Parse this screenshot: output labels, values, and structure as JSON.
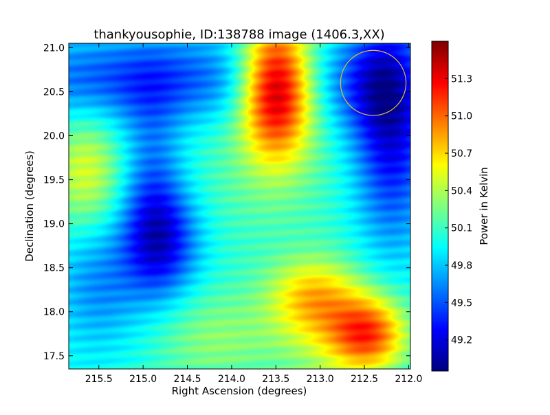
{
  "chart_data": {
    "type": "heatmap",
    "title": "thankyousophie, ID:138788 image (1406.3,XX)",
    "xlabel": "Right Ascension (degrees)",
    "ylabel": "Declination (degrees)",
    "xlim": [
      215.84,
      211.98
    ],
    "ylim": [
      17.35,
      21.05
    ],
    "xticks": [
      {
        "value": 215.5,
        "label": "215.5"
      },
      {
        "value": 215.0,
        "label": "215.0"
      },
      {
        "value": 214.5,
        "label": "214.5"
      },
      {
        "value": 214.0,
        "label": "214.0"
      },
      {
        "value": 213.5,
        "label": "213.5"
      },
      {
        "value": 213.0,
        "label": "213.0"
      },
      {
        "value": 212.5,
        "label": "212.5"
      },
      {
        "value": 212.0,
        "label": "212.0"
      }
    ],
    "yticks": [
      {
        "value": 17.5,
        "label": "17.5"
      },
      {
        "value": 18.0,
        "label": "18.0"
      },
      {
        "value": 18.5,
        "label": "18.5"
      },
      {
        "value": 19.0,
        "label": "19.0"
      },
      {
        "value": 19.5,
        "label": "19.5"
      },
      {
        "value": 20.0,
        "label": "20.0"
      },
      {
        "value": 20.5,
        "label": "20.5"
      },
      {
        "value": 21.0,
        "label": "21.0"
      }
    ],
    "colorbar": {
      "label": "Power in Kelvin",
      "range": [
        48.95,
        51.6
      ],
      "colormap": "jet",
      "ticks": [
        {
          "value": 49.2,
          "label": "49.2"
        },
        {
          "value": 49.5,
          "label": "49.5"
        },
        {
          "value": 49.8,
          "label": "49.8"
        },
        {
          "value": 50.1,
          "label": "50.1"
        },
        {
          "value": 50.4,
          "label": "50.4"
        },
        {
          "value": 50.7,
          "label": "50.7"
        },
        {
          "value": 51.0,
          "label": "51.0"
        },
        {
          "value": 51.3,
          "label": "51.3"
        }
      ]
    },
    "background_level": 50.0,
    "features": [
      {
        "ra": 213.5,
        "dec": 20.55,
        "sigma_ra": 0.28,
        "sigma_dec": 0.55,
        "amplitude": 1.55
      },
      {
        "ra": 212.45,
        "dec": 17.75,
        "sigma_ra": 0.3,
        "sigma_dec": 0.3,
        "amplitude": 0.95
      },
      {
        "ra": 213.1,
        "dec": 18.2,
        "sigma_ra": 0.35,
        "sigma_dec": 0.3,
        "amplitude": 0.55
      },
      {
        "ra": 212.9,
        "dec": 17.8,
        "sigma_ra": 0.45,
        "sigma_dec": 0.45,
        "amplitude": 0.4
      },
      {
        "ra": 215.65,
        "dec": 19.6,
        "sigma_ra": 0.3,
        "sigma_dec": 0.45,
        "amplitude": 0.5
      },
      {
        "ra": 214.8,
        "dec": 18.8,
        "sigma_ra": 0.3,
        "sigma_dec": 0.45,
        "amplitude": -0.75
      },
      {
        "ra": 214.9,
        "dec": 19.6,
        "sigma_ra": 0.25,
        "sigma_dec": 0.7,
        "amplitude": -0.4
      },
      {
        "ra": 215.0,
        "dec": 20.65,
        "sigma_ra": 1.2,
        "sigma_dec": 0.35,
        "amplitude": -0.55
      },
      {
        "ra": 212.2,
        "dec": 20.1,
        "sigma_ra": 0.3,
        "sigma_dec": 0.9,
        "amplitude": -0.8
      },
      {
        "ra": 212.45,
        "dec": 20.6,
        "sigma_ra": 0.35,
        "sigma_dec": 0.4,
        "amplitude": -0.4
      },
      {
        "ra": 215.5,
        "dec": 18.3,
        "sigma_ra": 0.35,
        "sigma_dec": 0.5,
        "amplitude": -0.35
      },
      {
        "ra": 213.7,
        "dec": 19.5,
        "sigma_ra": 0.8,
        "sigma_dec": 0.6,
        "amplitude": 0.15
      },
      {
        "ra": 214.2,
        "dec": 17.7,
        "sigma_ra": 0.5,
        "sigma_dec": 0.4,
        "amplitude": 0.3
      }
    ],
    "annotations": [
      {
        "type": "circle",
        "ra": 212.4,
        "dec": 20.6,
        "radius_deg": 0.37,
        "color": "#e0c030"
      }
    ]
  }
}
